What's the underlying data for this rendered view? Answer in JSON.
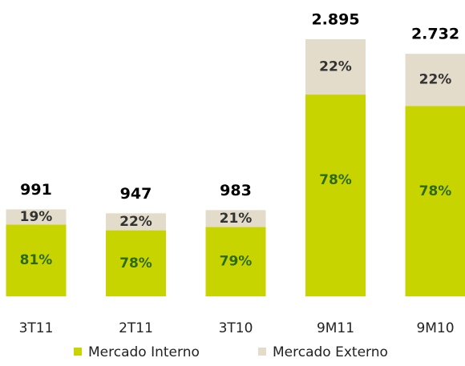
{
  "chart_data": {
    "type": "bar",
    "stacking": "percent",
    "categories": [
      "3T11",
      "2T11",
      "3T10",
      "9M11",
      "9M10"
    ],
    "totals": {
      "values": [
        991,
        947,
        983,
        2895,
        2732
      ],
      "value_labels": [
        "991",
        "947",
        "983",
        "2.895",
        "2.732"
      ]
    },
    "series": [
      {
        "name": "Mercado Interno",
        "color": "#c8d400",
        "label_color": "#2e6b0e",
        "values": [
          81,
          78,
          79,
          78,
          78
        ],
        "value_labels": [
          "81%",
          "78%",
          "79%",
          "78%",
          "78%"
        ]
      },
      {
        "name": "Mercado Externo",
        "color": "#e3dccb",
        "label_color": "#333333",
        "values": [
          19,
          22,
          21,
          22,
          22
        ],
        "value_labels": [
          "19%",
          "22%",
          "21%",
          "22%",
          "22%"
        ]
      }
    ]
  }
}
